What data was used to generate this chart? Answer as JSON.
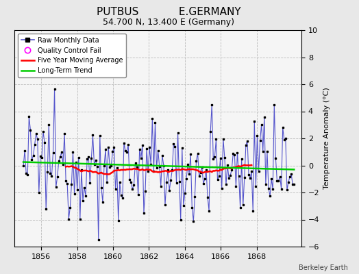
{
  "title": "PUTBUS            E.GERMANY",
  "subtitle": "54.700 N, 13.400 E (Germany)",
  "ylabel": "Temperature Anomaly (°C)",
  "attribution": "Berkeley Earth",
  "ylim": [
    -6,
    10
  ],
  "yticks": [
    -6,
    -4,
    -2,
    0,
    2,
    4,
    6,
    8,
    10
  ],
  "xlim": [
    1854.5,
    1870.5
  ],
  "xticks": [
    1856,
    1858,
    1860,
    1862,
    1864,
    1866,
    1868
  ],
  "plot_bg_color": "#f5f5f5",
  "fig_bg_color": "#e8e8e8",
  "raw_color": "#5555cc",
  "ma_color": "#ff0000",
  "trend_color": "#00cc00",
  "qc_color": "#ff00ff",
  "title_fontsize": 11,
  "subtitle_fontsize": 9,
  "seed": 42,
  "start_year": 1855.0,
  "end_year": 1870.0,
  "n_months": 192
}
